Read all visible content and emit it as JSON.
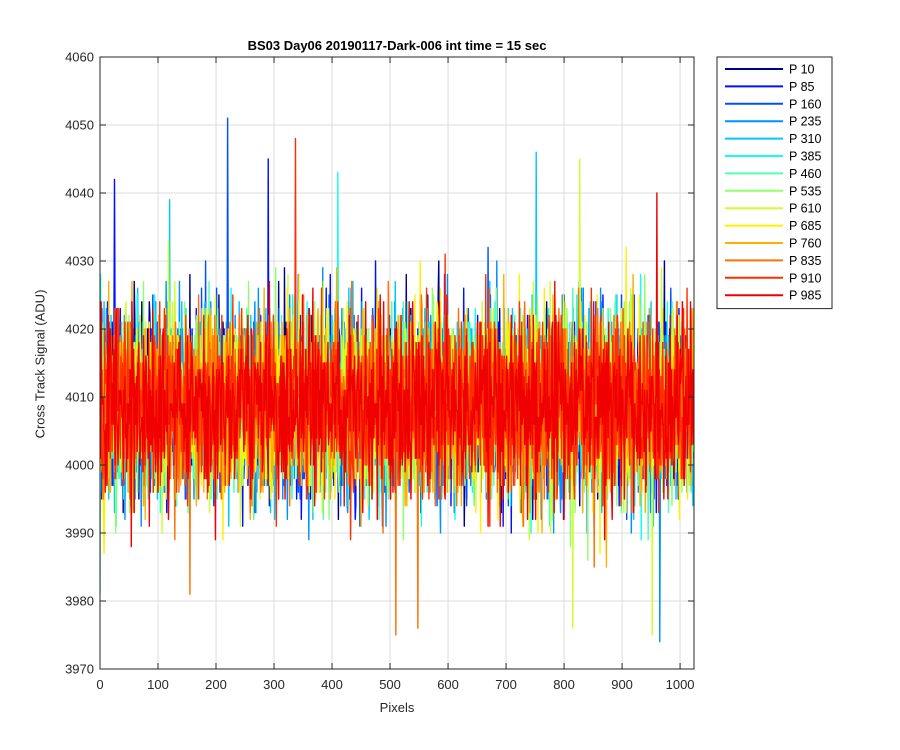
{
  "chart_data": {
    "type": "line",
    "title": "BS03 Day06 20190117-Dark-006 int time = 15 sec",
    "xlabel": "Pixels",
    "ylabel": "Cross Track Signal (ADU)",
    "xlim": [
      0,
      1024
    ],
    "ylim": [
      3970,
      4060
    ],
    "xticks": [
      0,
      100,
      200,
      300,
      400,
      500,
      600,
      700,
      800,
      900,
      1000
    ],
    "yticks": [
      3970,
      3980,
      3990,
      4000,
      4010,
      4020,
      4030,
      4040,
      4050,
      4060
    ],
    "grid": true,
    "legend_position": "outside-right",
    "noise": {
      "mean": 4009,
      "sigma": 6.5,
      "n_points": 1024
    },
    "series": [
      {
        "name": "P 10",
        "color": "#00008f"
      },
      {
        "name": "P 85",
        "color": "#0010ff"
      },
      {
        "name": "P 160",
        "color": "#0050ff"
      },
      {
        "name": "P 235",
        "color": "#0090ff"
      },
      {
        "name": "P 310",
        "color": "#00c8ff"
      },
      {
        "name": "P 385",
        "color": "#10ffef"
      },
      {
        "name": "P 460",
        "color": "#50ffaf"
      },
      {
        "name": "P 535",
        "color": "#90ff6f"
      },
      {
        "name": "P 610",
        "color": "#cfff30"
      },
      {
        "name": "P 685",
        "color": "#ffef00"
      },
      {
        "name": "P 760",
        "color": "#ffb000"
      },
      {
        "name": "P 835",
        "color": "#ff7000"
      },
      {
        "name": "P 910",
        "color": "#ff3000"
      },
      {
        "name": "P 985",
        "color": "#f00000"
      }
    ],
    "spikes": [
      {
        "series": "P 85",
        "x": 25,
        "y": 4042
      },
      {
        "series": "P 160",
        "x": 220,
        "y": 4051
      },
      {
        "series": "P 910",
        "x": 337,
        "y": 4048
      },
      {
        "series": "P 85",
        "x": 290,
        "y": 4045
      },
      {
        "series": "P 310",
        "x": 752,
        "y": 4046
      },
      {
        "series": "P 610",
        "x": 827,
        "y": 4045
      },
      {
        "series": "P 835",
        "x": 510,
        "y": 3975
      },
      {
        "series": "P 835",
        "x": 548,
        "y": 3976
      },
      {
        "series": "P 235",
        "x": 965,
        "y": 3974
      },
      {
        "series": "P 610",
        "x": 952,
        "y": 3975
      },
      {
        "series": "P 610",
        "x": 815,
        "y": 3976
      },
      {
        "series": "P 835",
        "x": 155,
        "y": 3981
      },
      {
        "series": "P 460",
        "x": 0,
        "y": 3981
      },
      {
        "series": "P 310",
        "x": 120,
        "y": 4039
      },
      {
        "series": "P 385",
        "x": 410,
        "y": 4043
      },
      {
        "series": "P 985",
        "x": 960,
        "y": 4040
      }
    ]
  }
}
